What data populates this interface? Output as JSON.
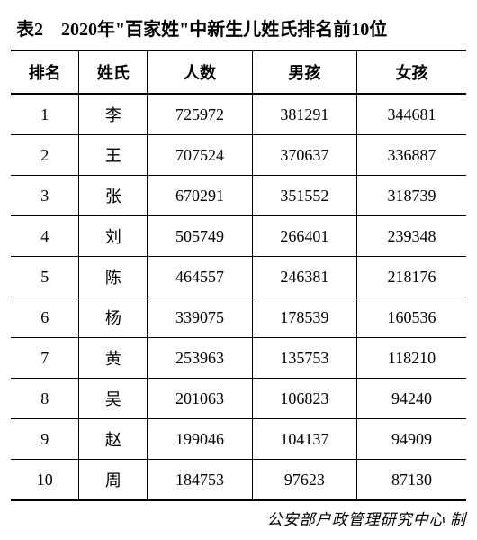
{
  "title": "表2　2020年\"百家姓\"中新生儿姓氏排名前10位",
  "columns": [
    "排名",
    "姓氏",
    "人数",
    "男孩",
    "女孩"
  ],
  "rows": [
    [
      "1",
      "李",
      "725972",
      "381291",
      "344681"
    ],
    [
      "2",
      "王",
      "707524",
      "370637",
      "336887"
    ],
    [
      "3",
      "张",
      "670291",
      "351552",
      "318739"
    ],
    [
      "4",
      "刘",
      "505749",
      "266401",
      "239348"
    ],
    [
      "5",
      "陈",
      "464557",
      "246381",
      "218176"
    ],
    [
      "6",
      "杨",
      "339075",
      "178539",
      "160536"
    ],
    [
      "7",
      "黄",
      "253963",
      "135753",
      "118210"
    ],
    [
      "8",
      "吴",
      "201063",
      "106823",
      "94240"
    ],
    [
      "9",
      "赵",
      "199046",
      "104137",
      "94909"
    ],
    [
      "10",
      "周",
      "184753",
      "97623",
      "87130"
    ]
  ],
  "footer": "公安部户政管理研究中心  制",
  "col_classes": [
    "col-rank",
    "col-name",
    "col-total",
    "col-male",
    "col-female"
  ]
}
